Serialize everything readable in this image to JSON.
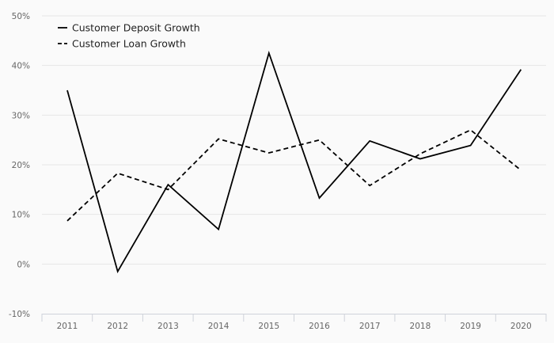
{
  "chart_data": {
    "type": "line",
    "title": "",
    "xlabel": "",
    "ylabel": "",
    "categories": [
      "2011",
      "2012",
      "2013",
      "2014",
      "2015",
      "2016",
      "2017",
      "2018",
      "2019",
      "2020"
    ],
    "ylim": [
      -10,
      50
    ],
    "yticks": [
      -10,
      0,
      10,
      20,
      30,
      40,
      50
    ],
    "ytick_labels": [
      "-10%",
      "0%",
      "10%",
      "20%",
      "30%",
      "40%",
      "50%"
    ],
    "grid": true,
    "legend_position": "top-left",
    "series": [
      {
        "name": "Customer Deposit Growth",
        "style": "solid",
        "color": "#000000",
        "values": [
          35,
          -1.5,
          16,
          7,
          42.5,
          13.3,
          24.8,
          21.2,
          23.9,
          39.2
        ]
      },
      {
        "name": "Customer Loan Growth",
        "style": "dashed",
        "color": "#000000",
        "values": [
          8.7,
          18.3,
          15,
          25.2,
          22.4,
          25,
          15.8,
          22.2,
          27,
          18.9
        ]
      }
    ]
  }
}
